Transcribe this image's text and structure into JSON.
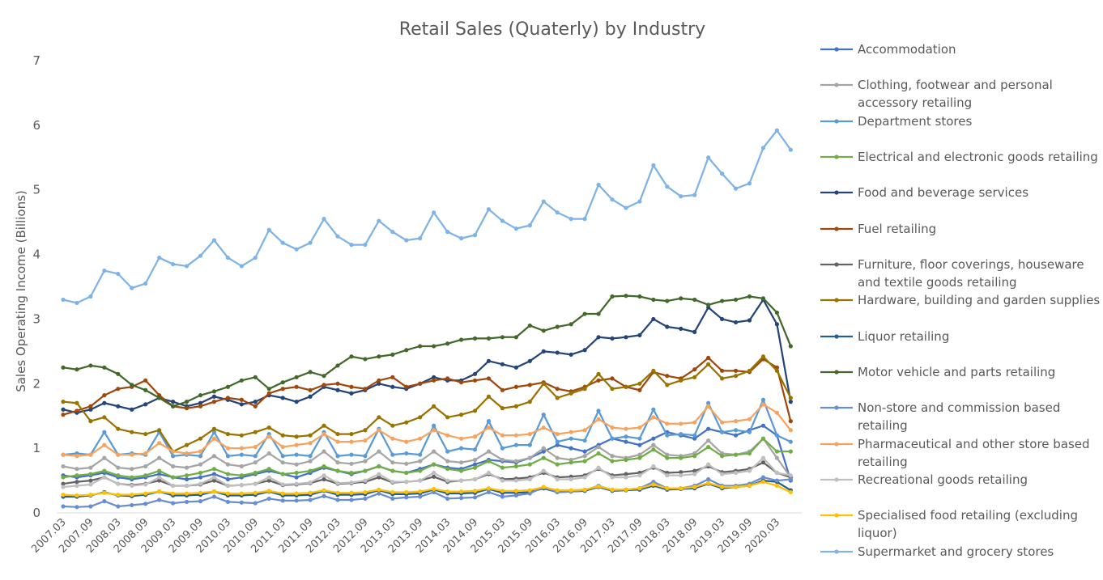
{
  "chart_data": {
    "type": "line",
    "title": "Retail Sales (Quaterly) by Industry",
    "xlabel": "",
    "ylabel": "Sales Operating Income (Billions)",
    "ylim": [
      0,
      7
    ],
    "yticks": [
      "0",
      "1",
      "2",
      "3",
      "4",
      "5",
      "6",
      "7"
    ],
    "grid": false,
    "legend_position": "right",
    "x": [
      "2007.03",
      "2007.06",
      "2007.09",
      "2007.12",
      "2008.03",
      "2008.06",
      "2008.09",
      "2008.12",
      "2009.03",
      "2009.06",
      "2009.09",
      "2009.12",
      "2010.03",
      "2010.06",
      "2010.09",
      "2010.12",
      "2011.03",
      "2011.06",
      "2011.09",
      "2011.12",
      "2012.03",
      "2012.06",
      "2012.09",
      "2012.12",
      "2013.03",
      "2013.06",
      "2013.09",
      "2013.12",
      "2014.03",
      "2014.06",
      "2014.09",
      "2014.12",
      "2015.03",
      "2015.06",
      "2015.09",
      "2015.12",
      "2016.03",
      "2016.06",
      "2016.09",
      "2016.12",
      "2017.03",
      "2017.06",
      "2017.09",
      "2017.12",
      "2018.03",
      "2018.06",
      "2018.09",
      "2018.12",
      "2019.03",
      "2019.06",
      "2019.09",
      "2019.12",
      "2020.03",
      "2020.06"
    ],
    "x_tick_labels": [
      "2007.03",
      "2007.09",
      "2008.03",
      "2008.09",
      "2009.03",
      "2009.09",
      "2010.03",
      "2010.09",
      "2011.03",
      "2011.09",
      "2012.03",
      "2012.09",
      "2013.03",
      "2013.09",
      "2014.03",
      "2014.09",
      "2015.03",
      "2015.09",
      "2016.03",
      "2016.09",
      "2017.03",
      "2017.09",
      "2018.03",
      "2018.09",
      "2019.03",
      "2019.09",
      "2020.03"
    ],
    "series": [
      {
        "name": "Accommodation",
        "color": "#4472C4",
        "values": [
          0.58,
          0.55,
          0.58,
          0.62,
          0.55,
          0.52,
          0.55,
          0.6,
          0.55,
          0.52,
          0.55,
          0.6,
          0.52,
          0.55,
          0.6,
          0.65,
          0.6,
          0.55,
          0.62,
          0.7,
          0.65,
          0.6,
          0.65,
          0.72,
          0.65,
          0.62,
          0.68,
          0.75,
          0.7,
          0.68,
          0.75,
          0.82,
          0.8,
          0.78,
          0.85,
          0.95,
          1.05,
          1.0,
          0.95,
          1.05,
          1.15,
          1.1,
          1.05,
          1.15,
          1.25,
          1.2,
          1.15,
          1.3,
          1.25,
          1.2,
          1.28,
          1.35,
          1.2,
          0.5
        ]
      },
      {
        "name": "Clothing, footwear and personal accessory retailing",
        "color": "#A5A5A5",
        "values": [
          0.72,
          0.68,
          0.7,
          0.85,
          0.7,
          0.68,
          0.72,
          0.85,
          0.72,
          0.7,
          0.75,
          0.88,
          0.75,
          0.72,
          0.78,
          0.92,
          0.78,
          0.75,
          0.8,
          0.95,
          0.78,
          0.76,
          0.8,
          0.95,
          0.78,
          0.76,
          0.8,
          0.95,
          0.8,
          0.78,
          0.82,
          0.95,
          0.82,
          0.8,
          0.85,
          1.0,
          0.85,
          0.82,
          0.88,
          1.02,
          0.88,
          0.85,
          0.9,
          1.05,
          0.9,
          0.88,
          0.92,
          1.12,
          0.92,
          0.9,
          0.95,
          1.15,
          0.85,
          0.55
        ]
      },
      {
        "name": "Department stores",
        "color": "#5B9BD5",
        "values": [
          0.9,
          0.92,
          0.9,
          1.25,
          0.9,
          0.92,
          0.9,
          1.25,
          0.88,
          0.9,
          0.88,
          1.25,
          0.88,
          0.9,
          0.88,
          1.22,
          0.88,
          0.9,
          0.88,
          1.25,
          0.88,
          0.9,
          0.88,
          1.3,
          0.9,
          0.92,
          0.9,
          1.35,
          0.95,
          1.0,
          0.98,
          1.42,
          1.0,
          1.05,
          1.05,
          1.52,
          1.1,
          1.15,
          1.12,
          1.58,
          1.15,
          1.18,
          1.15,
          1.6,
          1.2,
          1.22,
          1.2,
          1.7,
          1.25,
          1.28,
          1.25,
          1.75,
          1.2,
          1.1
        ]
      },
      {
        "name": "Electrical and electronic goods retailing",
        "color": "#70AD47",
        "values": [
          0.55,
          0.58,
          0.6,
          0.65,
          0.58,
          0.55,
          0.58,
          0.65,
          0.55,
          0.58,
          0.62,
          0.68,
          0.6,
          0.58,
          0.62,
          0.68,
          0.6,
          0.62,
          0.65,
          0.72,
          0.65,
          0.62,
          0.65,
          0.72,
          0.65,
          0.62,
          0.65,
          0.75,
          0.68,
          0.65,
          0.7,
          0.8,
          0.7,
          0.72,
          0.75,
          0.85,
          0.75,
          0.78,
          0.8,
          0.92,
          0.8,
          0.82,
          0.85,
          0.98,
          0.85,
          0.85,
          0.88,
          1.02,
          0.88,
          0.9,
          0.92,
          1.15,
          0.95,
          0.95
        ]
      },
      {
        "name": "Food and beverage services",
        "color": "#264478",
        "values": [
          1.6,
          1.55,
          1.6,
          1.7,
          1.65,
          1.6,
          1.68,
          1.78,
          1.72,
          1.65,
          1.7,
          1.8,
          1.75,
          1.68,
          1.72,
          1.82,
          1.78,
          1.72,
          1.8,
          1.95,
          1.9,
          1.85,
          1.9,
          2.0,
          1.95,
          1.92,
          2.0,
          2.1,
          2.05,
          2.05,
          2.15,
          2.35,
          2.3,
          2.25,
          2.35,
          2.5,
          2.48,
          2.45,
          2.52,
          2.72,
          2.7,
          2.72,
          2.75,
          3.0,
          2.88,
          2.85,
          2.8,
          3.18,
          3.0,
          2.95,
          2.98,
          3.3,
          2.92,
          1.72
        ]
      },
      {
        "name": "Fuel retailing",
        "color": "#9E480E",
        "values": [
          1.52,
          1.58,
          1.65,
          1.82,
          1.92,
          1.95,
          2.05,
          1.82,
          1.65,
          1.62,
          1.65,
          1.72,
          1.78,
          1.75,
          1.65,
          1.85,
          1.92,
          1.95,
          1.9,
          1.98,
          2.0,
          1.95,
          1.92,
          2.05,
          2.1,
          1.95,
          2.0,
          2.05,
          2.08,
          2.02,
          2.05,
          2.08,
          1.9,
          1.95,
          1.98,
          2.02,
          1.92,
          1.88,
          1.95,
          2.05,
          2.08,
          1.95,
          1.9,
          2.18,
          2.12,
          2.08,
          2.22,
          2.4,
          2.2,
          2.2,
          2.18,
          2.38,
          2.25,
          1.42
        ]
      },
      {
        "name": "Furniture, floor coverings, houseware and textile goods retailing",
        "color": "#636363",
        "values": [
          0.45,
          0.48,
          0.5,
          0.55,
          0.45,
          0.43,
          0.45,
          0.5,
          0.42,
          0.42,
          0.44,
          0.5,
          0.42,
          0.43,
          0.45,
          0.5,
          0.43,
          0.44,
          0.46,
          0.52,
          0.45,
          0.46,
          0.48,
          0.55,
          0.47,
          0.48,
          0.5,
          0.56,
          0.48,
          0.5,
          0.52,
          0.6,
          0.52,
          0.53,
          0.55,
          0.62,
          0.55,
          0.56,
          0.58,
          0.68,
          0.58,
          0.6,
          0.62,
          0.7,
          0.62,
          0.63,
          0.65,
          0.72,
          0.63,
          0.65,
          0.68,
          0.78,
          0.62,
          0.55
        ]
      },
      {
        "name": "Hardware, building and garden supplies",
        "color": "#997300",
        "values": [
          1.72,
          1.7,
          1.42,
          1.48,
          1.3,
          1.25,
          1.22,
          1.28,
          0.95,
          1.05,
          1.15,
          1.3,
          1.22,
          1.2,
          1.25,
          1.32,
          1.2,
          1.18,
          1.2,
          1.35,
          1.22,
          1.22,
          1.28,
          1.48,
          1.35,
          1.4,
          1.48,
          1.65,
          1.48,
          1.52,
          1.58,
          1.8,
          1.62,
          1.65,
          1.72,
          2.0,
          1.78,
          1.85,
          1.92,
          2.15,
          1.92,
          1.95,
          2.0,
          2.2,
          1.98,
          2.05,
          2.1,
          2.3,
          2.08,
          2.12,
          2.2,
          2.42,
          2.2,
          1.78
        ]
      },
      {
        "name": "Liquor retailing",
        "color": "#255E91",
        "values": [
          0.25,
          0.25,
          0.27,
          0.32,
          0.27,
          0.26,
          0.28,
          0.33,
          0.27,
          0.27,
          0.28,
          0.33,
          0.27,
          0.27,
          0.28,
          0.33,
          0.27,
          0.27,
          0.28,
          0.34,
          0.28,
          0.28,
          0.29,
          0.35,
          0.29,
          0.29,
          0.3,
          0.36,
          0.3,
          0.3,
          0.31,
          0.37,
          0.31,
          0.31,
          0.32,
          0.38,
          0.32,
          0.33,
          0.34,
          0.4,
          0.34,
          0.35,
          0.36,
          0.42,
          0.36,
          0.37,
          0.38,
          0.45,
          0.38,
          0.4,
          0.42,
          0.5,
          0.48,
          0.35
        ]
      },
      {
        "name": "Motor vehicle and parts retailing",
        "color": "#43682B",
        "values": [
          2.25,
          2.22,
          2.28,
          2.25,
          2.15,
          1.98,
          1.9,
          1.78,
          1.65,
          1.72,
          1.82,
          1.88,
          1.95,
          2.05,
          2.1,
          1.92,
          2.02,
          2.1,
          2.18,
          2.12,
          2.28,
          2.42,
          2.38,
          2.42,
          2.45,
          2.52,
          2.58,
          2.58,
          2.62,
          2.68,
          2.7,
          2.7,
          2.72,
          2.72,
          2.9,
          2.82,
          2.88,
          2.92,
          3.08,
          3.08,
          3.35,
          3.36,
          3.35,
          3.3,
          3.28,
          3.32,
          3.3,
          3.22,
          3.28,
          3.3,
          3.35,
          3.32,
          3.1,
          2.58
        ]
      },
      {
        "name": "Non-store and commission based retailing",
        "color": "#698ED0",
        "values": [
          0.1,
          0.09,
          0.1,
          0.18,
          0.1,
          0.12,
          0.14,
          0.2,
          0.15,
          0.17,
          0.18,
          0.25,
          0.17,
          0.16,
          0.15,
          0.22,
          0.19,
          0.19,
          0.2,
          0.26,
          0.2,
          0.2,
          0.22,
          0.3,
          0.22,
          0.24,
          0.25,
          0.32,
          0.22,
          0.23,
          0.24,
          0.32,
          0.25,
          0.27,
          0.3,
          0.4,
          0.32,
          0.33,
          0.35,
          0.42,
          0.35,
          0.36,
          0.38,
          0.48,
          0.38,
          0.38,
          0.42,
          0.52,
          0.42,
          0.42,
          0.45,
          0.55,
          0.5,
          0.52
        ]
      },
      {
        "name": "Pharmaceutical and other store based retailing",
        "color": "#F4A460",
        "values": [
          0.9,
          0.88,
          0.9,
          1.05,
          0.9,
          0.9,
          0.92,
          1.08,
          0.95,
          0.92,
          0.95,
          1.15,
          1.0,
          1.0,
          1.02,
          1.18,
          1.02,
          1.05,
          1.08,
          1.22,
          1.1,
          1.1,
          1.12,
          1.28,
          1.15,
          1.1,
          1.15,
          1.28,
          1.2,
          1.15,
          1.18,
          1.32,
          1.2,
          1.2,
          1.22,
          1.32,
          1.22,
          1.25,
          1.28,
          1.45,
          1.32,
          1.3,
          1.32,
          1.48,
          1.38,
          1.38,
          1.4,
          1.65,
          1.4,
          1.42,
          1.45,
          1.68,
          1.55,
          1.28
        ]
      },
      {
        "name": "Recreational goods retailing",
        "color": "#BFBFBF",
        "values": [
          0.4,
          0.42,
          0.44,
          0.55,
          0.45,
          0.42,
          0.44,
          0.55,
          0.42,
          0.42,
          0.45,
          0.55,
          0.42,
          0.43,
          0.45,
          0.55,
          0.44,
          0.45,
          0.47,
          0.58,
          0.46,
          0.47,
          0.5,
          0.6,
          0.48,
          0.48,
          0.5,
          0.62,
          0.5,
          0.5,
          0.52,
          0.62,
          0.5,
          0.5,
          0.52,
          0.65,
          0.52,
          0.52,
          0.55,
          0.7,
          0.55,
          0.55,
          0.58,
          0.72,
          0.58,
          0.58,
          0.6,
          0.75,
          0.6,
          0.62,
          0.65,
          0.85,
          0.62,
          0.58
        ]
      },
      {
        "name": "Specialised food retailing (excluding liquor)",
        "color": "#FFC000",
        "values": [
          0.28,
          0.27,
          0.28,
          0.31,
          0.28,
          0.28,
          0.3,
          0.33,
          0.3,
          0.3,
          0.31,
          0.33,
          0.3,
          0.3,
          0.31,
          0.34,
          0.3,
          0.3,
          0.31,
          0.35,
          0.31,
          0.31,
          0.32,
          0.36,
          0.32,
          0.32,
          0.33,
          0.37,
          0.33,
          0.33,
          0.34,
          0.38,
          0.34,
          0.34,
          0.35,
          0.4,
          0.35,
          0.35,
          0.36,
          0.41,
          0.36,
          0.36,
          0.38,
          0.44,
          0.38,
          0.38,
          0.4,
          0.46,
          0.4,
          0.4,
          0.42,
          0.48,
          0.42,
          0.32
        ]
      },
      {
        "name": "Supermarket and grocery stores",
        "color": "#7FB2E5",
        "values": [
          3.3,
          3.25,
          3.35,
          3.75,
          3.7,
          3.48,
          3.55,
          3.95,
          3.85,
          3.82,
          3.98,
          4.22,
          3.95,
          3.82,
          3.95,
          4.38,
          4.18,
          4.08,
          4.18,
          4.55,
          4.28,
          4.15,
          4.15,
          4.52,
          4.35,
          4.22,
          4.25,
          4.65,
          4.35,
          4.25,
          4.3,
          4.7,
          4.52,
          4.4,
          4.45,
          4.82,
          4.65,
          4.55,
          4.55,
          5.08,
          4.85,
          4.72,
          4.82,
          5.38,
          5.05,
          4.9,
          4.92,
          5.5,
          5.25,
          5.02,
          5.1,
          5.65,
          5.92,
          5.62
        ]
      }
    ]
  }
}
